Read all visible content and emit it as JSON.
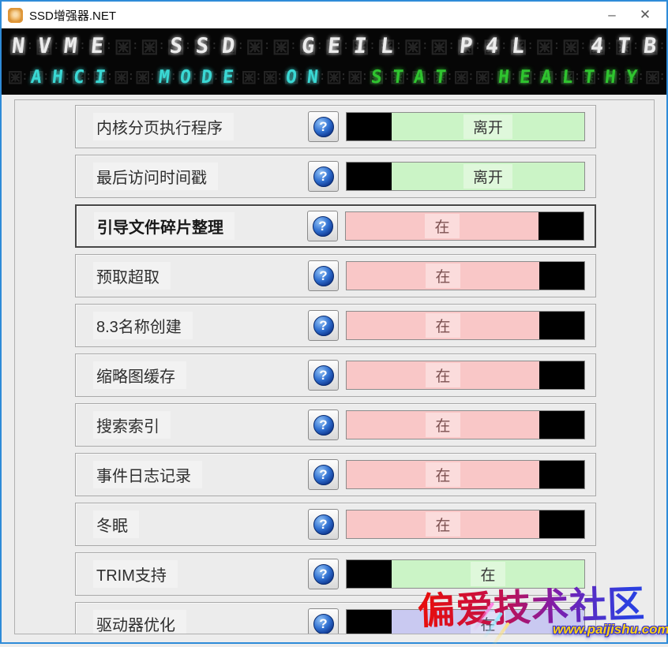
{
  "window": {
    "title": "SSD增强器.NET",
    "minimize_glyph": "–",
    "close_glyph": "✕"
  },
  "led": {
    "rows": [
      {
        "cls": "r1",
        "segments": [
          {
            "text": "NVME  SSD  GEIL  P4L  4TB",
            "color": "#ececec"
          }
        ]
      },
      {
        "cls": "r2",
        "segments": [
          {
            "text": " AHCI  MODE  ON ",
            "color": "#3ad8d4"
          },
          {
            "text": " STAT  HEALTHY ",
            "color": "#2fc42f"
          }
        ]
      }
    ]
  },
  "options": [
    {
      "label": "内核分页执行程序",
      "state": "离开",
      "track": "green",
      "handle": "left",
      "focused": false
    },
    {
      "label": "最后访问时间戳",
      "state": "离开",
      "track": "green",
      "handle": "left",
      "focused": false
    },
    {
      "label": "引导文件碎片整理",
      "state": "在",
      "track": "pink",
      "handle": "right",
      "focused": true
    },
    {
      "label": "预取超取",
      "state": "在",
      "track": "pink",
      "handle": "right",
      "focused": false
    },
    {
      "label": "8.3名称创建",
      "state": "在",
      "track": "pink",
      "handle": "right",
      "focused": false
    },
    {
      "label": "缩略图缓存",
      "state": "在",
      "track": "pink",
      "handle": "right",
      "focused": false
    },
    {
      "label": "搜索索引",
      "state": "在",
      "track": "pink",
      "handle": "right",
      "focused": false
    },
    {
      "label": "事件日志记录",
      "state": "在",
      "track": "pink",
      "handle": "right",
      "focused": false
    },
    {
      "label": "冬眠",
      "state": "在",
      "track": "pink",
      "handle": "right",
      "focused": false
    },
    {
      "label": "TRIM支持",
      "state": "在",
      "track": "green",
      "handle": "left",
      "focused": false
    },
    {
      "label": "驱动器优化",
      "state": "在",
      "track": "lavender",
      "handle": "left",
      "focused": false
    }
  ],
  "help_glyph": "?",
  "colors": {
    "accent_border": "#2e8bd8",
    "toggle_off_green": "#cbf4c6",
    "toggle_on_pink": "#f9c7c7",
    "toggle_lavender": "#c9c9f1",
    "led_white": "#ececec",
    "led_cyan": "#3ad8d4",
    "led_green": "#2fc42f"
  },
  "watermark": {
    "text": "偏爱技术社区",
    "url": "www.paijishu.com"
  }
}
